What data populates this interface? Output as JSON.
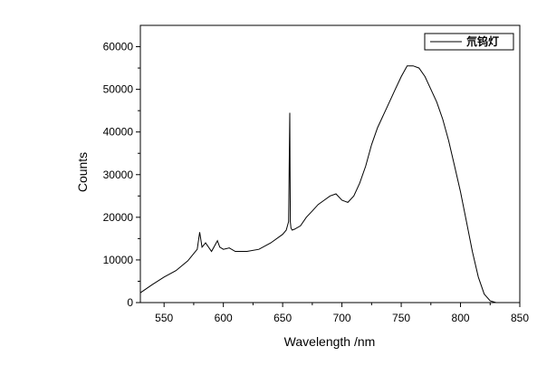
{
  "chart_data": {
    "type": "line",
    "title": "",
    "xlabel": "Wavelength /nm",
    "ylabel": "Counts",
    "xlim": [
      530,
      850
    ],
    "ylim": [
      0,
      65000
    ],
    "x_ticks": [
      550,
      600,
      650,
      700,
      750,
      800,
      850
    ],
    "y_ticks": [
      0,
      10000,
      20000,
      30000,
      40000,
      50000,
      60000
    ],
    "x_tick_labels": [
      "550",
      "600",
      "650",
      "700",
      "750",
      "800",
      "850"
    ],
    "y_tick_labels": [
      "0",
      "10000",
      "20000",
      "30000",
      "40000",
      "50000",
      "60000"
    ],
    "grid": false,
    "legend": "top-right",
    "line_color": "#000000",
    "series": [
      {
        "name": "氘钨灯",
        "x": [
          530,
          540,
          550,
          560,
          570,
          575,
          578,
          580,
          582,
          585,
          590,
          595,
          597,
          600,
          605,
          610,
          620,
          630,
          640,
          650,
          653,
          655,
          656,
          656.5,
          657,
          658,
          660,
          665,
          670,
          675,
          680,
          685,
          690,
          695,
          700,
          705,
          710,
          715,
          720,
          725,
          730,
          735,
          740,
          745,
          750,
          755,
          760,
          765,
          770,
          775,
          780,
          785,
          790,
          795,
          800,
          805,
          810,
          815,
          820,
          825,
          830
        ],
        "y": [
          2300,
          4200,
          6000,
          7500,
          9800,
          11500,
          12500,
          16500,
          13000,
          14000,
          12000,
          14500,
          13000,
          12500,
          12800,
          12000,
          12000,
          12500,
          14000,
          16000,
          17000,
          19000,
          44500,
          19000,
          17500,
          17000,
          17200,
          18000,
          20000,
          21500,
          23000,
          24000,
          25000,
          25500,
          24000,
          23500,
          25000,
          28000,
          32000,
          37000,
          41000,
          44000,
          47000,
          50000,
          53000,
          55500,
          55500,
          55000,
          53000,
          50000,
          47000,
          43000,
          38000,
          32000,
          26000,
          19000,
          12000,
          6000,
          2000,
          400,
          0
        ]
      }
    ]
  }
}
